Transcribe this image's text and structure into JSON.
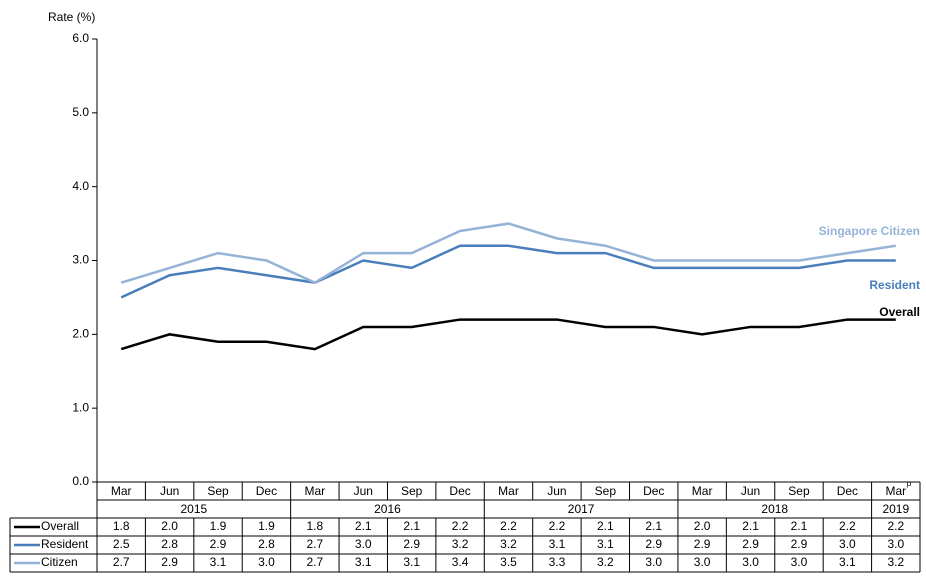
{
  "chart_data": {
    "type": "line",
    "y_axis_label": "Rate (%)",
    "categories": [
      "Mar",
      "Jun",
      "Sep",
      "Dec",
      "Mar",
      "Jun",
      "Sep",
      "Dec",
      "Mar",
      "Jun",
      "Sep",
      "Dec",
      "Mar",
      "Jun",
      "Sep",
      "Dec",
      "Mar"
    ],
    "last_category_superscript": "p",
    "years": [
      {
        "label": "2015",
        "span": 4
      },
      {
        "label": "2016",
        "span": 4
      },
      {
        "label": "2017",
        "span": 4
      },
      {
        "label": "2018",
        "span": 4
      },
      {
        "label": "2019",
        "span": 1
      }
    ],
    "ylim": [
      0,
      6
    ],
    "yticks": [
      {
        "value": 0,
        "label": "0.0"
      },
      {
        "value": 1,
        "label": "1.0"
      },
      {
        "value": 2,
        "label": "2.0"
      },
      {
        "value": 3,
        "label": "3.0"
      },
      {
        "value": 4,
        "label": "4.0"
      },
      {
        "value": 5,
        "label": "5.0"
      },
      {
        "value": 6,
        "label": "6.0"
      }
    ],
    "series": [
      {
        "name": "Overall",
        "end_label": "Overall",
        "color": "#000000",
        "values": [
          1.8,
          2.0,
          1.9,
          1.9,
          1.8,
          2.1,
          2.1,
          2.2,
          2.2,
          2.2,
          2.1,
          2.1,
          2.0,
          2.1,
          2.1,
          2.2,
          2.2
        ],
        "value_labels": [
          "1.8",
          "2.0",
          "1.9",
          "1.9",
          "1.8",
          "2.1",
          "2.1",
          "2.2",
          "2.2",
          "2.2",
          "2.1",
          "2.1",
          "2.0",
          "2.1",
          "2.1",
          "2.2",
          "2.2"
        ]
      },
      {
        "name": "Resident",
        "end_label": "Resident",
        "color": "#4a7ebb",
        "values": [
          2.5,
          2.8,
          2.9,
          2.8,
          2.7,
          3.0,
          2.9,
          3.2,
          3.2,
          3.1,
          3.1,
          2.9,
          2.9,
          2.9,
          2.9,
          3.0,
          3.0
        ],
        "value_labels": [
          "2.5",
          "2.8",
          "2.9",
          "2.8",
          "2.7",
          "3.0",
          "2.9",
          "3.2",
          "3.2",
          "3.1",
          "3.1",
          "2.9",
          "2.9",
          "2.9",
          "2.9",
          "3.0",
          "3.0"
        ]
      },
      {
        "name": "Citizen",
        "end_label": "Singapore Citizen",
        "color": "#95b3d7",
        "values": [
          2.7,
          2.9,
          3.1,
          3.0,
          2.7,
          3.1,
          3.1,
          3.4,
          3.5,
          3.3,
          3.2,
          3.0,
          3.0,
          3.0,
          3.0,
          3.1,
          3.2
        ],
        "value_labels": [
          "2.7",
          "2.9",
          "3.1",
          "3.0",
          "2.7",
          "3.1",
          "3.1",
          "3.4",
          "3.5",
          "3.3",
          "3.2",
          "3.0",
          "3.0",
          "3.0",
          "3.0",
          "3.1",
          "3.2"
        ]
      }
    ]
  }
}
